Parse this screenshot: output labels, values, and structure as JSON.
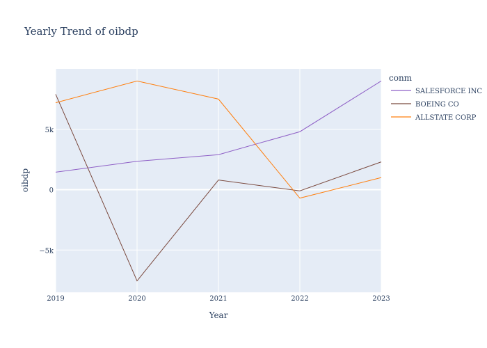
{
  "chart_data": {
    "type": "line",
    "title": "Yearly Trend of oibdp",
    "xlabel": "Year",
    "ylabel": "oibdp",
    "x": [
      2019,
      2020,
      2021,
      2022,
      2023
    ],
    "x_ticks": [
      "2019",
      "2020",
      "2021",
      "2022",
      "2023"
    ],
    "y_ticks": [
      {
        "value": -5000,
        "label": "−5k"
      },
      {
        "value": 0,
        "label": "0"
      },
      {
        "value": 5000,
        "label": "5k"
      }
    ],
    "xlim": [
      2019,
      2023
    ],
    "ylim": [
      -8500,
      10000
    ],
    "grid": true,
    "legend": {
      "title": "conm",
      "position": "right"
    },
    "series": [
      {
        "name": "SALESFORCE INC",
        "color": "#8e5fc6",
        "values": [
          1450,
          2350,
          2900,
          4800,
          9000
        ]
      },
      {
        "name": "BOEING CO",
        "color": "#7b4a3f",
        "values": [
          7900,
          -7550,
          800,
          -100,
          2300
        ]
      },
      {
        "name": "ALLSTATE CORP",
        "color": "#ff7f0e",
        "values": [
          7200,
          9000,
          7500,
          -700,
          1000
        ]
      }
    ],
    "plot_bgcolor": "#e5ecf6",
    "grid_color": "#ffffff"
  }
}
